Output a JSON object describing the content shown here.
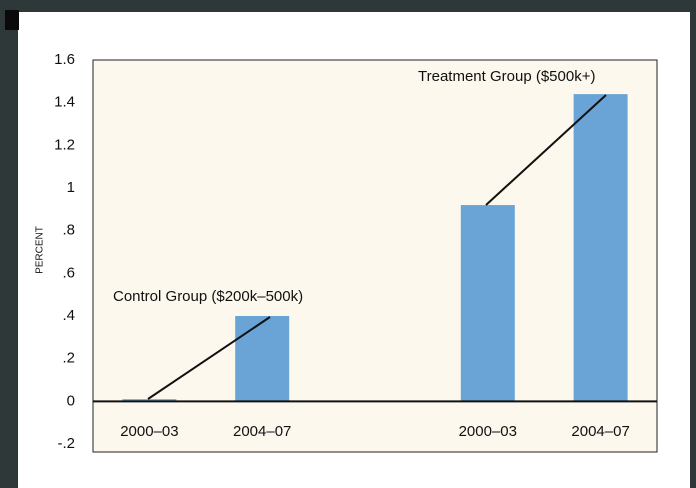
{
  "chart_data": {
    "type": "bar",
    "y_label": "PERCENT",
    "annotations": [
      "Control Group ($200k–500k)",
      "Treatment Group ($500k+)"
    ],
    "categories": [
      "2000–03",
      "2004–07",
      null,
      "2000–03",
      "2004–07"
    ],
    "values": [
      0.01,
      0.4,
      null,
      0.92,
      1.44
    ],
    "color": "#6aa3d5",
    "ylim": [
      -0.2,
      1.6
    ],
    "yticks": [
      {
        "value": -0.2,
        "label": "-.2"
      },
      0,
      {
        "value": 0.2,
        "label": ".2"
      },
      {
        "value": 0.4,
        "label": ".4"
      },
      {
        "value": 0.6,
        "label": ".6"
      },
      {
        "value": 0.8,
        "label": ".8"
      },
      1,
      1.2,
      1.4,
      1.6
    ],
    "grid": false
  }
}
